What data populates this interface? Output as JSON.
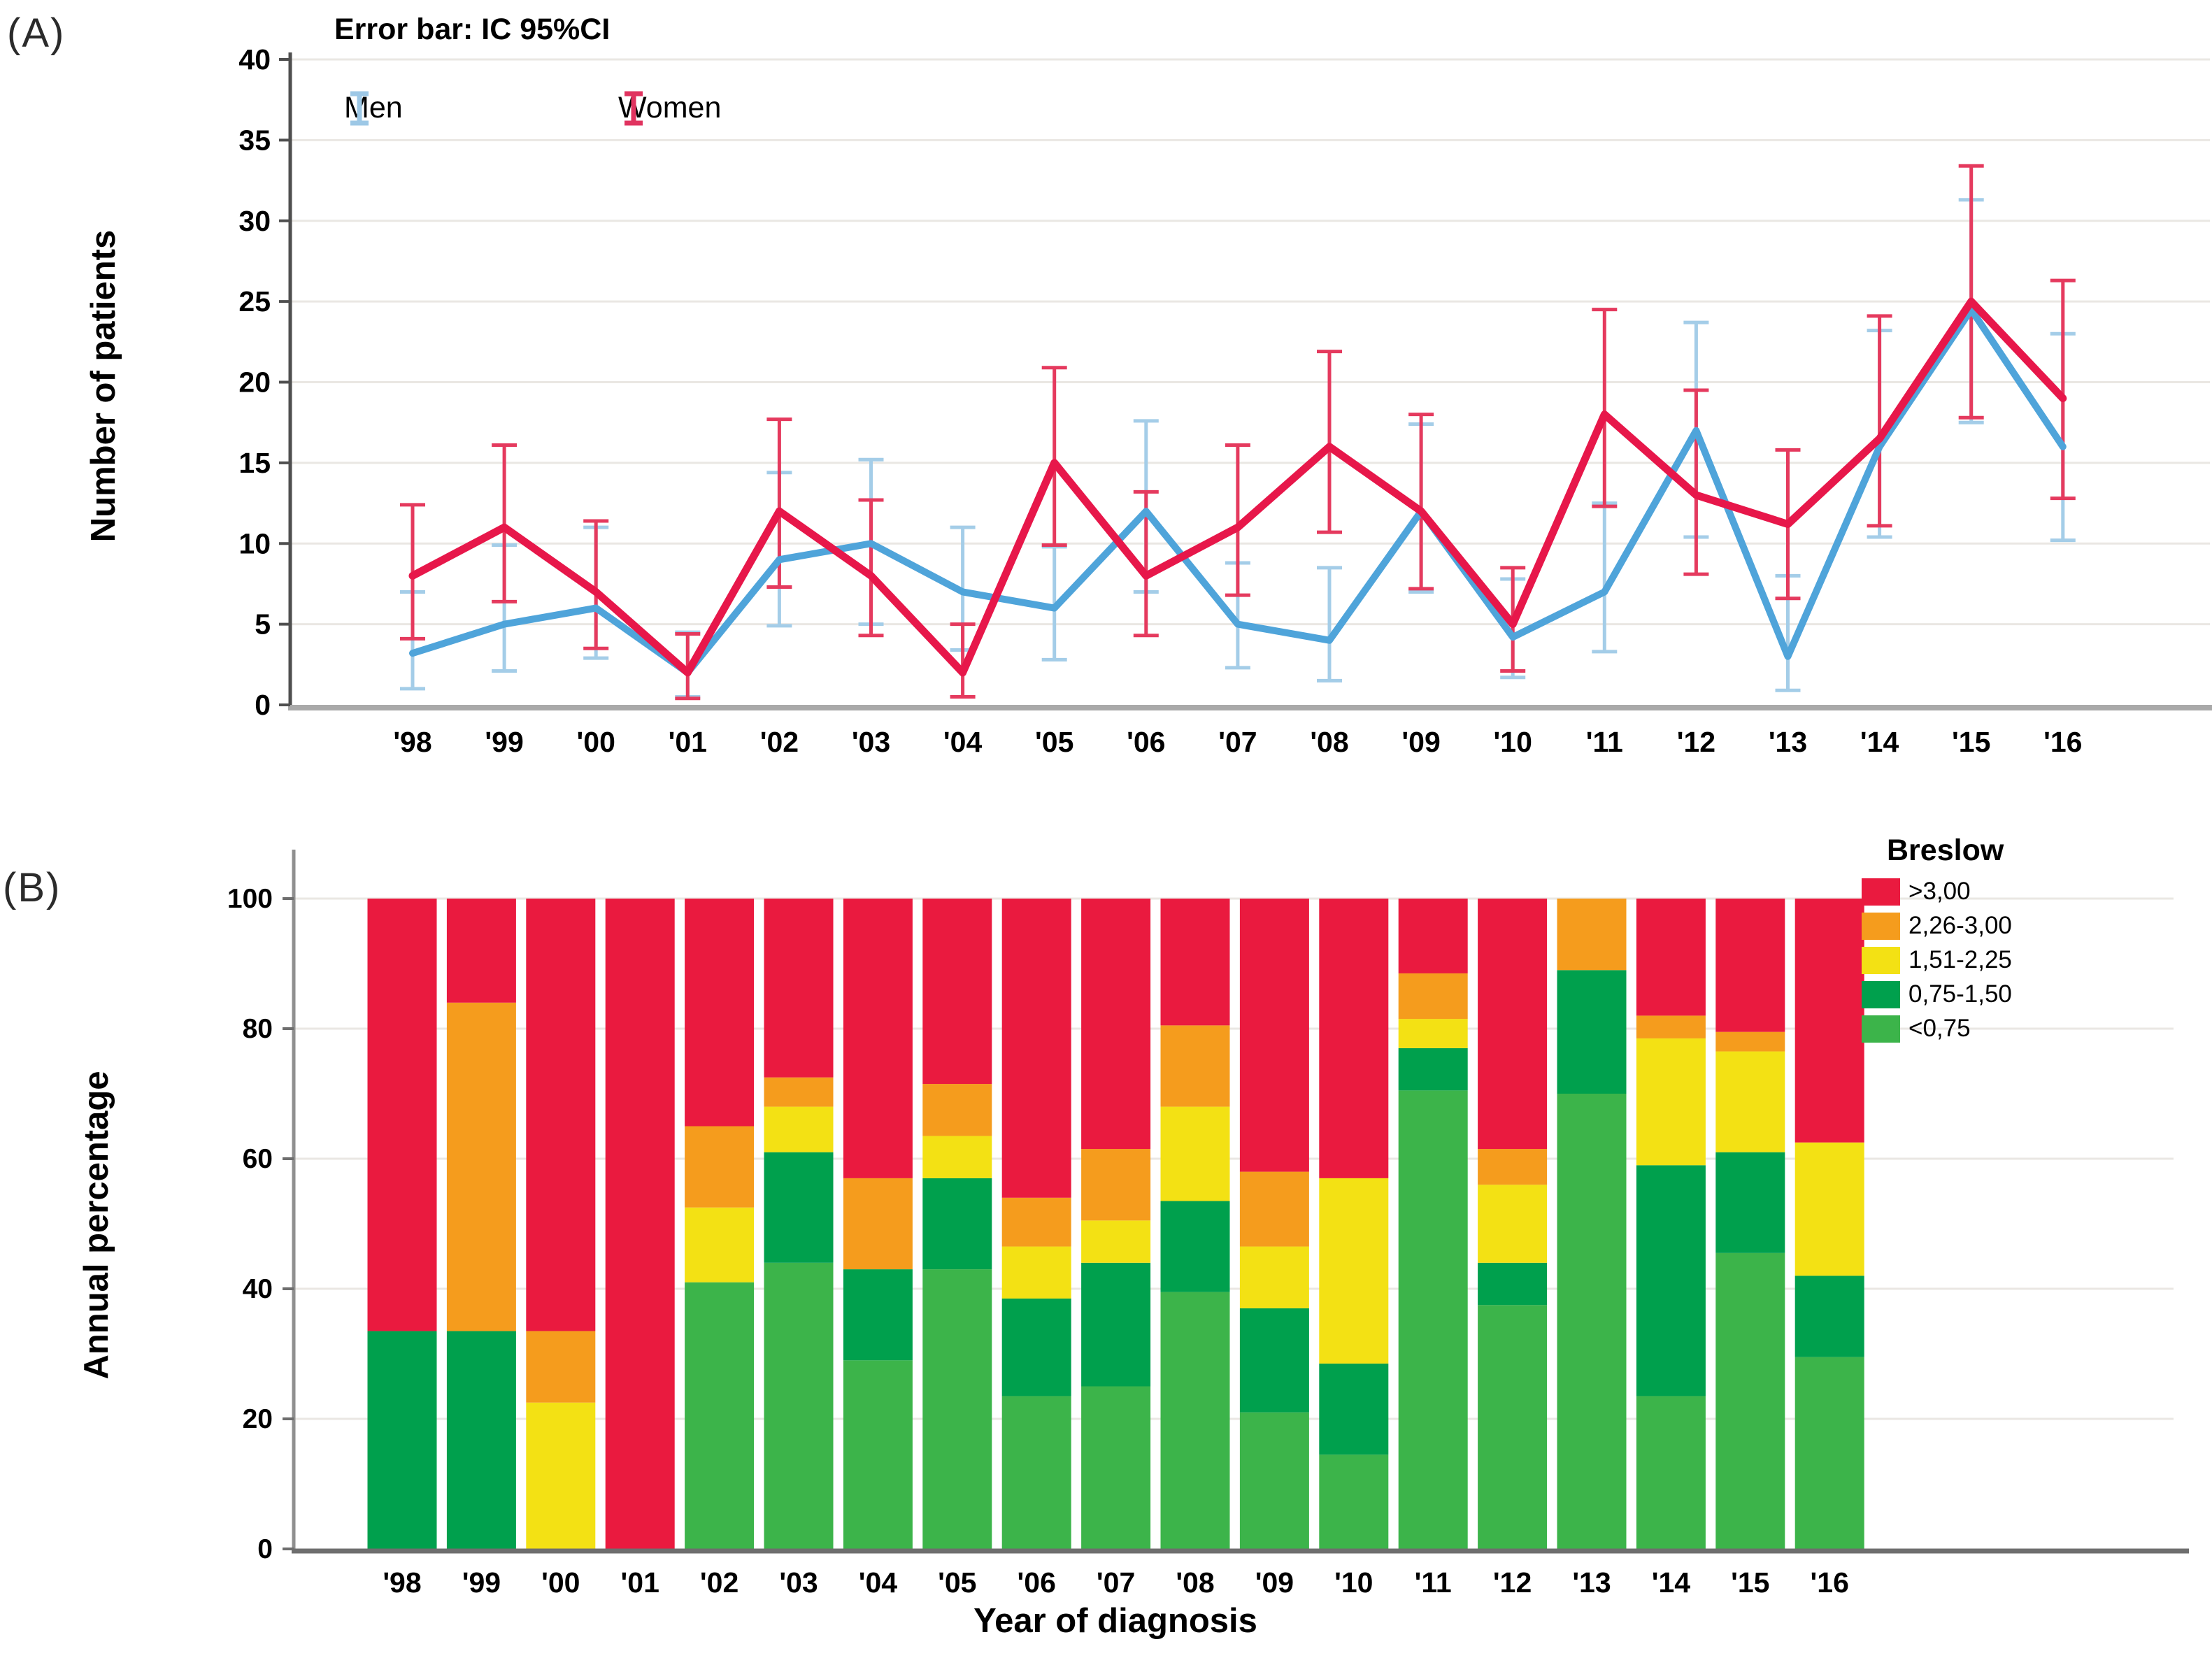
{
  "panels": {
    "a": {
      "label": "(A)",
      "note": "Error bar: IC 95%CI",
      "ylabel": "Number of patients"
    },
    "b": {
      "label": "(B)",
      "ylabel": "Annual percentage",
      "xlabel": "Year of diagnosis",
      "legend_title": "Breslow"
    }
  },
  "colors": {
    "women_line": "#e7174a",
    "women_errorbar": "#e53a5e",
    "men_line": "#4fa4da",
    "men_errorbar": "#a4cde8",
    "bar_red": "#ea1a3f",
    "bar_orange": "#f59c1d",
    "bar_yellow": "#f3e114",
    "bar_dark_green": "#00a04d",
    "bar_light_green": "#3cb44a",
    "gridline": "#eae7e3",
    "axis_dark": "#4f4f4f",
    "axis_gray": "#a9a9a9",
    "text": "#000000"
  },
  "chart_data": [
    {
      "type": "line",
      "panel": "A",
      "title": "",
      "note": "Error bar: IC 95%CI",
      "ylabel": "Number of patients",
      "xlabel": "",
      "ylim": [
        0,
        40
      ],
      "yticks": [
        0,
        5,
        10,
        15,
        20,
        25,
        30,
        35,
        40
      ],
      "grid": true,
      "legend_position": "top-left",
      "categories": [
        "'98",
        "'99",
        "'00",
        "'01",
        "'02",
        "'03",
        "'04",
        "'05",
        "'06",
        "'07",
        "'08",
        "'09",
        "'10",
        "'11",
        "'12",
        "'13",
        "'14",
        "'15",
        "'16"
      ],
      "series": [
        {
          "name": "Men",
          "color_key": "men_line",
          "errorbar_color_key": "men_errorbar",
          "values": [
            3.2,
            5,
            6,
            2,
            9,
            10,
            7,
            6,
            12,
            5,
            4,
            12,
            4.2,
            7,
            17,
            3,
            16,
            24.5,
            16
          ],
          "ci_low": [
            1.0,
            2.1,
            2.9,
            0.5,
            4.9,
            5.0,
            3.4,
            2.8,
            7.0,
            2.3,
            1.5,
            7.0,
            1.7,
            3.3,
            10.4,
            0.9,
            10.4,
            17.5,
            10.2
          ],
          "ci_high": [
            7.0,
            9.9,
            11.0,
            4.5,
            14.4,
            15.2,
            11.0,
            9.8,
            17.6,
            8.8,
            8.5,
            17.4,
            7.8,
            12.5,
            23.7,
            8.0,
            23.2,
            31.3,
            23.0
          ]
        },
        {
          "name": "Women",
          "color_key": "women_line",
          "errorbar_color_key": "women_errorbar",
          "values": [
            8,
            11,
            7,
            2,
            12,
            8,
            2,
            15,
            8,
            11,
            16,
            12,
            5,
            18,
            13,
            11.2,
            16.5,
            25,
            19
          ],
          "ci_low": [
            4.1,
            6.4,
            3.5,
            0.4,
            7.3,
            4.3,
            0.5,
            9.9,
            4.3,
            6.8,
            10.7,
            7.2,
            2.1,
            12.3,
            8.1,
            6.6,
            11.1,
            17.8,
            12.8
          ],
          "ci_high": [
            12.4,
            16.1,
            11.4,
            4.4,
            17.7,
            12.7,
            5.0,
            20.9,
            13.2,
            16.1,
            21.9,
            18.0,
            8.5,
            24.5,
            19.5,
            15.8,
            24.1,
            33.4,
            26.3
          ]
        }
      ]
    },
    {
      "type": "bar",
      "stacked": true,
      "panel": "B",
      "title": "",
      "ylabel": "Annual percentage",
      "xlabel": "Year of diagnosis",
      "ylim": [
        0,
        100
      ],
      "yticks": [
        0,
        20,
        40,
        60,
        80,
        100
      ],
      "grid": true,
      "legend_title": "Breslow",
      "legend_position": "right",
      "categories": [
        "'98",
        "'99",
        "'00",
        "'01",
        "'02",
        "'03",
        "'04",
        "'05",
        "'06",
        "'07",
        "'08",
        "'09",
        "'10",
        "'11",
        "'12",
        "'13",
        "'14",
        "'15",
        "'16"
      ],
      "series": [
        {
          "name": ">3,00",
          "color_key": "bar_red",
          "values": [
            66.5,
            16,
            66.5,
            100,
            35,
            27.5,
            43,
            28.5,
            46,
            38.5,
            19.5,
            42,
            43,
            11.5,
            38.5,
            0,
            18,
            20.5,
            37.5
          ]
        },
        {
          "name": "2,26-3,00",
          "color_key": "bar_orange",
          "values": [
            0,
            50.5,
            11,
            0,
            12.5,
            4.5,
            14,
            8,
            7.5,
            11,
            12.5,
            11.5,
            0,
            7,
            5.5,
            11,
            3.5,
            3,
            0
          ]
        },
        {
          "name": "1,51-2,25",
          "color_key": "bar_yellow",
          "values": [
            0,
            0,
            22.5,
            0,
            11.5,
            7,
            0,
            6.5,
            8,
            6.5,
            14.5,
            9.5,
            28.5,
            4.5,
            12,
            0,
            19.5,
            15.5,
            20.5
          ]
        },
        {
          "name": "0,75-1,50",
          "color_key": "bar_dark_green",
          "values": [
            33.5,
            33.5,
            0,
            0,
            0,
            17,
            14,
            14,
            15,
            19,
            14,
            16,
            14,
            6.5,
            6.5,
            19,
            35.5,
            15.5,
            12.5
          ]
        },
        {
          "name": "<0,75",
          "color_key": "bar_light_green",
          "values": [
            0,
            0,
            0,
            0,
            41,
            44,
            29,
            43,
            23.5,
            25,
            39.5,
            21,
            14.5,
            70.5,
            37.5,
            70,
            23.5,
            45.5,
            29.5
          ]
        }
      ]
    }
  ]
}
